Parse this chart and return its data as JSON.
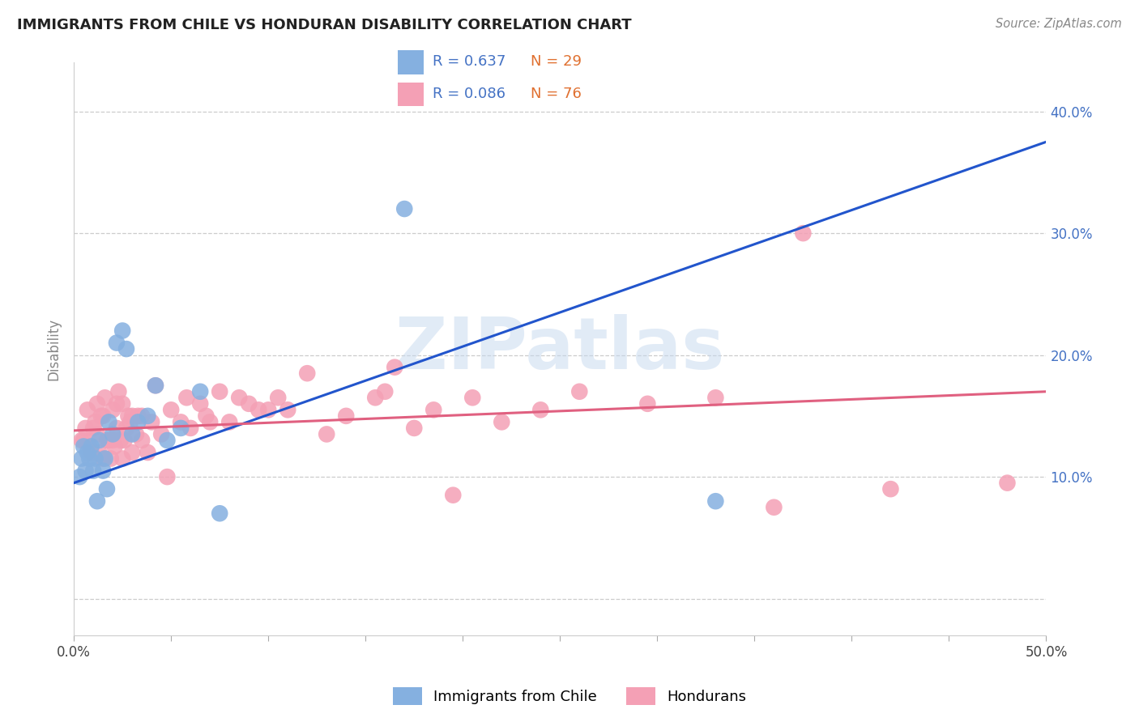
{
  "title": "IMMIGRANTS FROM CHILE VS HONDURAN DISABILITY CORRELATION CHART",
  "source": "Source: ZipAtlas.com",
  "ylabel": "Disability",
  "xlim": [
    0.0,
    0.5
  ],
  "ylim": [
    -0.03,
    0.44
  ],
  "chile_R": 0.637,
  "chile_N": 29,
  "honduran_R": 0.086,
  "honduran_N": 76,
  "legend_label_1": "Immigrants from Chile",
  "legend_label_2": "Hondurans",
  "chile_color": "#85b0e0",
  "honduran_color": "#f4a0b5",
  "chile_line_color": "#2255cc",
  "honduran_line_color": "#e06080",
  "watermark_text": "ZIPatlas",
  "chile_line_x": [
    0.0,
    0.5
  ],
  "chile_line_y": [
    0.095,
    0.375
  ],
  "honduran_line_x": [
    0.0,
    0.5
  ],
  "honduran_line_y": [
    0.138,
    0.17
  ],
  "chile_scatter_x": [
    0.003,
    0.004,
    0.005,
    0.006,
    0.007,
    0.008,
    0.009,
    0.01,
    0.011,
    0.012,
    0.013,
    0.015,
    0.016,
    0.017,
    0.018,
    0.02,
    0.022,
    0.025,
    0.027,
    0.03,
    0.033,
    0.038,
    0.042,
    0.048,
    0.055,
    0.065,
    0.075,
    0.17,
    0.33
  ],
  "chile_scatter_y": [
    0.1,
    0.115,
    0.125,
    0.105,
    0.12,
    0.115,
    0.125,
    0.105,
    0.115,
    0.08,
    0.13,
    0.105,
    0.115,
    0.09,
    0.145,
    0.135,
    0.21,
    0.22,
    0.205,
    0.135,
    0.145,
    0.15,
    0.175,
    0.13,
    0.14,
    0.17,
    0.07,
    0.32,
    0.08
  ],
  "honduran_scatter_x": [
    0.004,
    0.005,
    0.006,
    0.007,
    0.008,
    0.009,
    0.01,
    0.011,
    0.012,
    0.012,
    0.013,
    0.014,
    0.015,
    0.015,
    0.016,
    0.017,
    0.018,
    0.019,
    0.02,
    0.02,
    0.021,
    0.022,
    0.022,
    0.023,
    0.024,
    0.025,
    0.025,
    0.026,
    0.027,
    0.028,
    0.029,
    0.03,
    0.03,
    0.032,
    0.033,
    0.035,
    0.035,
    0.038,
    0.04,
    0.042,
    0.045,
    0.048,
    0.05,
    0.055,
    0.058,
    0.06,
    0.065,
    0.068,
    0.07,
    0.075,
    0.08,
    0.085,
    0.09,
    0.095,
    0.1,
    0.105,
    0.11,
    0.12,
    0.13,
    0.14,
    0.155,
    0.16,
    0.165,
    0.175,
    0.185,
    0.195,
    0.205,
    0.22,
    0.24,
    0.26,
    0.295,
    0.33,
    0.36,
    0.375,
    0.42,
    0.48
  ],
  "honduran_scatter_y": [
    0.13,
    0.13,
    0.14,
    0.155,
    0.125,
    0.12,
    0.14,
    0.145,
    0.135,
    0.16,
    0.12,
    0.15,
    0.115,
    0.15,
    0.165,
    0.13,
    0.13,
    0.115,
    0.155,
    0.13,
    0.125,
    0.14,
    0.16,
    0.17,
    0.13,
    0.16,
    0.115,
    0.13,
    0.14,
    0.15,
    0.145,
    0.12,
    0.15,
    0.135,
    0.15,
    0.13,
    0.15,
    0.12,
    0.145,
    0.175,
    0.135,
    0.1,
    0.155,
    0.145,
    0.165,
    0.14,
    0.16,
    0.15,
    0.145,
    0.17,
    0.145,
    0.165,
    0.16,
    0.155,
    0.155,
    0.165,
    0.155,
    0.185,
    0.135,
    0.15,
    0.165,
    0.17,
    0.19,
    0.14,
    0.155,
    0.085,
    0.165,
    0.145,
    0.155,
    0.17,
    0.16,
    0.165,
    0.075,
    0.3,
    0.09,
    0.095
  ],
  "background_color": "#ffffff",
  "grid_color": "#cccccc",
  "yticks": [
    0.0,
    0.1,
    0.2,
    0.3,
    0.4
  ],
  "ytick_labels_right": [
    "",
    "10.0%",
    "20.0%",
    "30.0%",
    "40.0%"
  ]
}
